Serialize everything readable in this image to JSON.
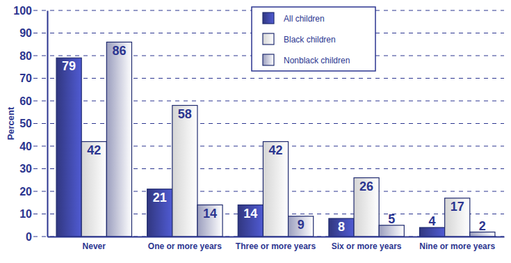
{
  "chart_data": {
    "type": "bar",
    "y_label": "Percent",
    "categories": [
      "Never",
      "One or more years",
      "Three or more years",
      "Six or more years",
      "Nine or more years"
    ],
    "series": [
      {
        "name": "All children",
        "color": "#3a4299",
        "values": [
          79,
          21,
          14,
          8,
          4
        ]
      },
      {
        "name": "Black children",
        "color": "#ffffff",
        "values": [
          42,
          58,
          42,
          26,
          17
        ]
      },
      {
        "name": "Nonblack children",
        "color": "#b9bde3",
        "values": [
          86,
          14,
          9,
          5,
          2
        ]
      }
    ],
    "ylim": [
      0,
      100
    ],
    "yticks": [
      0,
      10,
      20,
      30,
      40,
      50,
      60,
      70,
      80,
      90,
      100
    ],
    "grid": true,
    "legend": "top",
    "data_labels": true
  }
}
